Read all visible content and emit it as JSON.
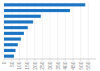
{
  "chart_data": {
    "type": "bar",
    "orientation": "horizontal",
    "categories": [
      null,
      null,
      null,
      null,
      null,
      null,
      null,
      null,
      null,
      null
    ],
    "values": [
      530,
      430,
      240,
      190,
      155,
      130,
      110,
      90,
      75,
      65
    ],
    "color": "#1a75c4",
    "xlim": [
      0,
      600
    ],
    "xticks": [
      0,
      50,
      100,
      150,
      200,
      250,
      300,
      350,
      400,
      450,
      500,
      550
    ],
    "grid": true,
    "tick_labels": "x"
  }
}
